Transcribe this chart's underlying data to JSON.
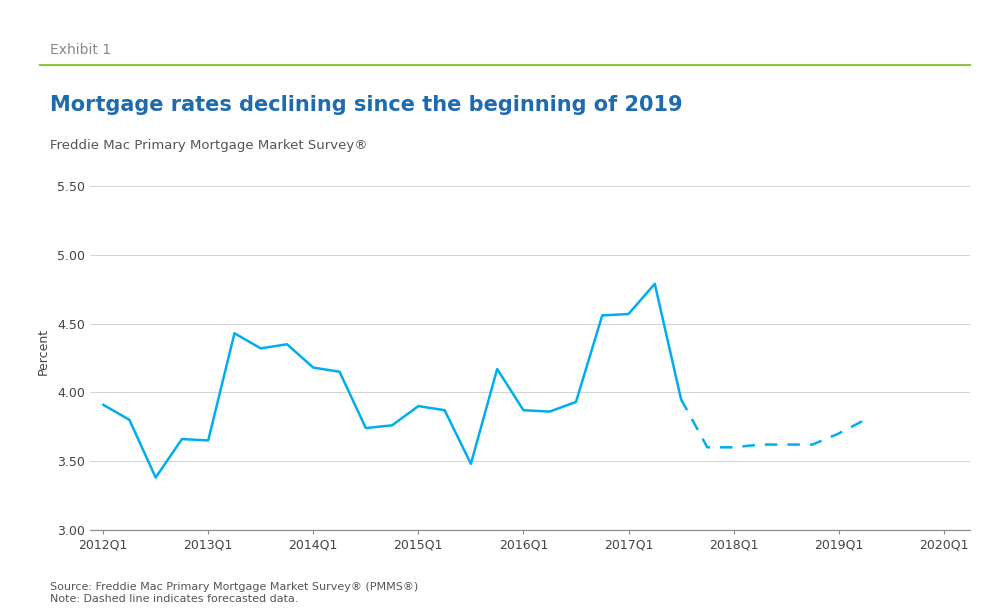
{
  "title": "Mortgage rates declining since the beginning of 2019",
  "exhibit_label": "Exhibit 1",
  "subtitle": "Freddie Mac Primary Mortgage Market Survey®",
  "ylabel": "Percent",
  "source_note": "Source: Freddie Mac Primary Mortgage Market Survey® (PMMS®)",
  "dashed_note": "Note: Dashed line indicates forecasted data.",
  "ylim": [
    3.0,
    5.6
  ],
  "yticks": [
    3.0,
    3.5,
    4.0,
    4.5,
    5.0,
    5.5
  ],
  "line_color": "#00AEEF",
  "title_color": "#1F6BB0",
  "exhibit_color": "#888888",
  "subtitle_color": "#555555",
  "note_color": "#555555",
  "separator_color": "#8DC63F",
  "solid_x": [
    0,
    1,
    2,
    3,
    4,
    5,
    6,
    7,
    8,
    9,
    10,
    11,
    12,
    13,
    14,
    15,
    16,
    17,
    18,
    19,
    20,
    21,
    22,
    23,
    24,
    25,
    26,
    27,
    28,
    29
  ],
  "solid_y": [
    3.91,
    3.8,
    3.38,
    3.66,
    3.65,
    4.43,
    4.32,
    4.35,
    4.18,
    4.15,
    3.74,
    3.76,
    3.9,
    3.87,
    3.48,
    4.17,
    3.87,
    3.86,
    3.93,
    4.56,
    4.57,
    4.79,
    3.95,
    3.6,
    3.6,
    3.62,
    3.62,
    3.62,
    3.7,
    3.8
  ],
  "dashed_start_idx": 22,
  "xtick_labels": [
    "2012Q1",
    "2013Q1",
    "2014Q1",
    "2015Q1",
    "2016Q1",
    "2017Q1",
    "2018Q1",
    "2019Q1",
    "2020Q1"
  ],
  "xtick_positions": [
    0,
    4,
    8,
    12,
    16,
    20,
    24,
    28,
    32
  ],
  "background_color": "#FFFFFF"
}
